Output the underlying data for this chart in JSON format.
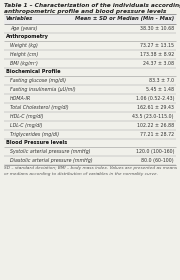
{
  "title_line1": "Table 1 – Characterization of the individuals according to age,",
  "title_line2": "anthropometric profile and blood pressure levels",
  "col_header_left": "Variables",
  "col_header_right": "Mean ± SD or Median (Min - Max)",
  "rows": [
    {
      "type": "data",
      "left": "Age (years)",
      "right": "38.30 ± 10.68"
    },
    {
      "type": "section",
      "left": "Anthropometry",
      "right": ""
    },
    {
      "type": "data",
      "left": "Weight (kg)",
      "right": "73.27 ± 13.15"
    },
    {
      "type": "data",
      "left": "Height (cm)",
      "right": "173.38 ± 8.92"
    },
    {
      "type": "data",
      "left": "BMI (kg/m²)",
      "right": "24.37 ± 3.08"
    },
    {
      "type": "section",
      "left": "Biochemical Profile",
      "right": ""
    },
    {
      "type": "data",
      "left": "Fasting glucose (mg/dl)",
      "right": "83.3 ± 7.0"
    },
    {
      "type": "data",
      "left": "Fasting insulinemia (μU/ml)",
      "right": "5.45 ± 1.48"
    },
    {
      "type": "data",
      "left": "HOMA-IR",
      "right": "1.06 (0.52-2.43)"
    },
    {
      "type": "data",
      "left": "Total Cholesterol (mg/dl)",
      "right": "162.61 ± 29.43"
    },
    {
      "type": "data",
      "left": "HDL-C (mg/dl)",
      "right": "43.5 (23.0-115.0)"
    },
    {
      "type": "data",
      "left": "LDL-C (mg/dl)",
      "right": "102.22 ± 26.88"
    },
    {
      "type": "data",
      "left": "Triglycerides (mg/dl)",
      "right": "77.21 ± 28.72"
    },
    {
      "type": "section",
      "left": "Blood Pressure levels",
      "right": ""
    },
    {
      "type": "data",
      "left": "Systolic arterial pressure (mmHg)",
      "right": "120.0 (100-160)"
    },
    {
      "type": "data",
      "left": "Diastolic arterial pressure (mmHg)",
      "right": "80.0 (60-100)"
    }
  ],
  "footnote_line1": "SD – standard deviation; BMI – body mass index. Values are presented as means",
  "footnote_line2": "or medians according to distribution of variables in the normality curve.",
  "bg_color": "#f0f0ea",
  "table_bg": "#ffffff",
  "line_color": "#999999",
  "title_color": "#222222",
  "header_color": "#222222",
  "section_color": "#111111",
  "data_color": "#333333",
  "footnote_color": "#555555"
}
